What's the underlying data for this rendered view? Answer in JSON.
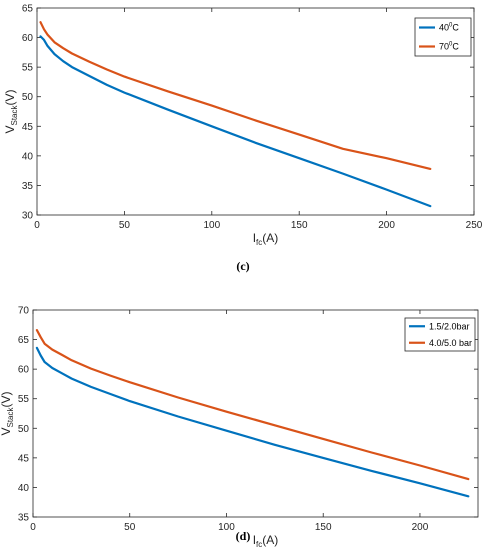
{
  "chart_data": [
    {
      "type": "line",
      "panel_label": "(c)",
      "xlabel": {
        "main": "I",
        "sub": "fc",
        "unit": "(A)"
      },
      "ylabel": {
        "main": "V",
        "sub": "Stack",
        "unit": "(V)"
      },
      "xlim": [
        0,
        250
      ],
      "ylim": [
        30,
        65
      ],
      "xticks": [
        0,
        50,
        100,
        150,
        200,
        250
      ],
      "yticks": [
        30,
        35,
        40,
        45,
        50,
        55,
        60,
        65
      ],
      "legend_position": "top-right",
      "grid": false,
      "series": [
        {
          "name": "40°C",
          "legend": {
            "main": "40",
            "sup": "0",
            "rest": "C"
          },
          "color": "#0072BD",
          "x": [
            2,
            4,
            6,
            10,
            15,
            20,
            30,
            40,
            50,
            75,
            100,
            125,
            150,
            175,
            200,
            225
          ],
          "y": [
            60.2,
            59.6,
            58.6,
            57.2,
            56.0,
            55.0,
            53.5,
            52.0,
            50.7,
            47.8,
            45.0,
            42.2,
            39.6,
            37.0,
            34.3,
            31.5
          ]
        },
        {
          "name": "70°C",
          "legend": {
            "main": "70",
            "sup": "0",
            "rest": "C"
          },
          "color": "#D95319",
          "x": [
            2,
            4,
            6,
            10,
            15,
            20,
            30,
            40,
            50,
            75,
            100,
            125,
            150,
            175,
            200,
            225
          ],
          "y": [
            62.6,
            61.4,
            60.5,
            59.2,
            58.2,
            57.3,
            55.9,
            54.6,
            53.4,
            50.9,
            48.5,
            46.0,
            43.6,
            41.2,
            39.6,
            37.8
          ]
        }
      ]
    },
    {
      "type": "line",
      "panel_label": "(d)",
      "xlabel": {
        "main": "I",
        "sub": "fc",
        "unit": "(A)"
      },
      "ylabel": {
        "main": "V",
        "sub": "Stack",
        "unit": "(V)"
      },
      "xlim": [
        0,
        230
      ],
      "ylim": [
        35,
        70
      ],
      "xticks": [
        0,
        50,
        100,
        150,
        200
      ],
      "yticks": [
        35,
        40,
        45,
        50,
        55,
        60,
        65,
        70
      ],
      "legend_position": "top-right",
      "grid": false,
      "series": [
        {
          "name": "1.5/2.0bar",
          "color": "#0072BD",
          "x": [
            2,
            4,
            6,
            10,
            15,
            20,
            30,
            40,
            50,
            75,
            100,
            125,
            150,
            175,
            200,
            225
          ],
          "y": [
            63.6,
            62.3,
            61.2,
            60.2,
            59.3,
            58.4,
            57.0,
            55.8,
            54.6,
            52.0,
            49.6,
            47.2,
            45.0,
            42.8,
            40.7,
            38.5
          ]
        },
        {
          "name": "4.0/5.0 bar",
          "color": "#D95319",
          "x": [
            2,
            4,
            6,
            10,
            15,
            20,
            30,
            40,
            50,
            75,
            100,
            125,
            150,
            175,
            200,
            225
          ],
          "y": [
            66.6,
            65.4,
            64.3,
            63.3,
            62.4,
            61.5,
            60.1,
            58.9,
            57.8,
            55.2,
            52.8,
            50.5,
            48.2,
            45.9,
            43.7,
            41.4
          ]
        }
      ]
    }
  ]
}
